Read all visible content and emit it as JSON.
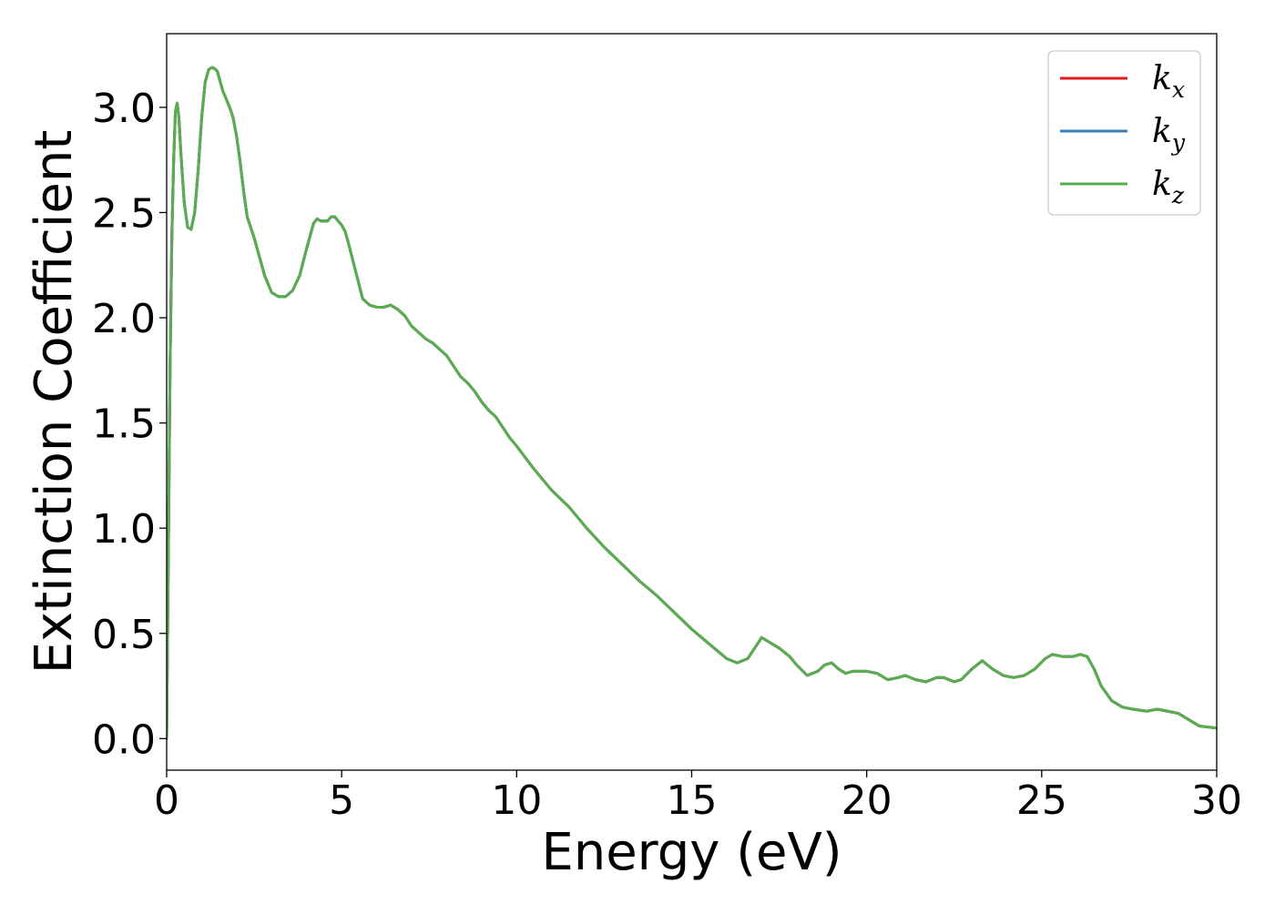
{
  "chart_data": {
    "type": "line",
    "xlabel": "Energy (eV)",
    "ylabel": "Extinction Coefficient",
    "xlim": [
      0,
      30
    ],
    "ylim": [
      -0.15,
      3.35
    ],
    "xticks": [
      0,
      5,
      10,
      15,
      20,
      25,
      30
    ],
    "xtick_labels": [
      "0",
      "5",
      "10",
      "15",
      "20",
      "25",
      "30"
    ],
    "yticks": [
      0.0,
      0.5,
      1.0,
      1.5,
      2.0,
      2.5,
      3.0
    ],
    "ytick_labels": [
      "0.0",
      "0.5",
      "1.0",
      "1.5",
      "2.0",
      "2.5",
      "3.0"
    ],
    "grid": false,
    "legend_position": "top-right",
    "x": [
      0.0,
      0.05,
      0.1,
      0.15,
      0.2,
      0.25,
      0.3,
      0.35,
      0.4,
      0.5,
      0.6,
      0.7,
      0.8,
      0.9,
      1.0,
      1.1,
      1.2,
      1.3,
      1.4,
      1.45,
      1.5,
      1.6,
      1.7,
      1.8,
      1.9,
      2.0,
      2.1,
      2.2,
      2.3,
      2.4,
      2.5,
      2.6,
      2.8,
      3.0,
      3.2,
      3.4,
      3.6,
      3.8,
      4.0,
      4.2,
      4.3,
      4.4,
      4.5,
      4.6,
      4.7,
      4.8,
      4.9,
      5.0,
      5.1,
      5.2,
      5.4,
      5.6,
      5.8,
      6.0,
      6.2,
      6.4,
      6.6,
      6.8,
      7.0,
      7.2,
      7.4,
      7.6,
      7.8,
      8.0,
      8.2,
      8.4,
      8.6,
      8.8,
      9.0,
      9.2,
      9.4,
      9.6,
      9.8,
      10.0,
      10.5,
      11.0,
      11.5,
      12.0,
      12.5,
      13.0,
      13.5,
      14.0,
      14.5,
      15.0,
      15.5,
      16.0,
      16.3,
      16.6,
      16.8,
      17.0,
      17.2,
      17.5,
      17.8,
      18.0,
      18.3,
      18.6,
      18.8,
      19.0,
      19.2,
      19.4,
      19.6,
      19.8,
      20.0,
      20.3,
      20.6,
      20.9,
      21.1,
      21.4,
      21.7,
      22.0,
      22.2,
      22.5,
      22.7,
      23.0,
      23.3,
      23.6,
      23.9,
      24.2,
      24.5,
      24.8,
      25.1,
      25.3,
      25.6,
      25.9,
      26.1,
      26.3,
      26.5,
      26.7,
      27.0,
      27.3,
      27.6,
      28.0,
      28.3,
      28.6,
      28.9,
      29.2,
      29.5,
      30.0
    ],
    "series": [
      {
        "name": "k_x",
        "label_base": "k",
        "label_sub": "x",
        "color": "#e41a1c",
        "values": [
          0.0,
          0.9,
          1.8,
          2.4,
          2.75,
          2.98,
          3.02,
          2.95,
          2.8,
          2.55,
          2.43,
          2.42,
          2.5,
          2.7,
          2.95,
          3.12,
          3.18,
          3.19,
          3.18,
          3.17,
          3.14,
          3.08,
          3.04,
          3.0,
          2.95,
          2.86,
          2.74,
          2.6,
          2.48,
          2.43,
          2.38,
          2.32,
          2.2,
          2.12,
          2.1,
          2.1,
          2.13,
          2.2,
          2.33,
          2.45,
          2.47,
          2.46,
          2.46,
          2.46,
          2.48,
          2.48,
          2.46,
          2.44,
          2.41,
          2.35,
          2.22,
          2.09,
          2.06,
          2.05,
          2.05,
          2.06,
          2.04,
          2.01,
          1.96,
          1.93,
          1.9,
          1.88,
          1.85,
          1.82,
          1.77,
          1.72,
          1.69,
          1.65,
          1.6,
          1.56,
          1.53,
          1.48,
          1.43,
          1.39,
          1.28,
          1.18,
          1.1,
          1.0,
          0.91,
          0.83,
          0.75,
          0.68,
          0.6,
          0.52,
          0.45,
          0.38,
          0.36,
          0.38,
          0.43,
          0.48,
          0.46,
          0.43,
          0.39,
          0.35,
          0.3,
          0.32,
          0.35,
          0.36,
          0.33,
          0.31,
          0.32,
          0.32,
          0.32,
          0.31,
          0.28,
          0.29,
          0.3,
          0.28,
          0.27,
          0.29,
          0.29,
          0.27,
          0.28,
          0.33,
          0.37,
          0.33,
          0.3,
          0.29,
          0.3,
          0.33,
          0.38,
          0.4,
          0.39,
          0.39,
          0.4,
          0.39,
          0.33,
          0.25,
          0.18,
          0.15,
          0.14,
          0.13,
          0.14,
          0.13,
          0.12,
          0.09,
          0.06,
          0.05
        ]
      },
      {
        "name": "k_y",
        "label_base": "k",
        "label_sub": "y",
        "color": "#377eb8",
        "values": [
          0.0,
          0.9,
          1.8,
          2.4,
          2.75,
          2.98,
          3.02,
          2.95,
          2.8,
          2.55,
          2.43,
          2.42,
          2.5,
          2.7,
          2.95,
          3.12,
          3.18,
          3.19,
          3.18,
          3.17,
          3.14,
          3.08,
          3.04,
          3.0,
          2.95,
          2.86,
          2.74,
          2.6,
          2.48,
          2.43,
          2.38,
          2.32,
          2.2,
          2.12,
          2.1,
          2.1,
          2.13,
          2.2,
          2.33,
          2.45,
          2.47,
          2.46,
          2.46,
          2.46,
          2.48,
          2.48,
          2.46,
          2.44,
          2.41,
          2.35,
          2.22,
          2.09,
          2.06,
          2.05,
          2.05,
          2.06,
          2.04,
          2.01,
          1.96,
          1.93,
          1.9,
          1.88,
          1.85,
          1.82,
          1.77,
          1.72,
          1.69,
          1.65,
          1.6,
          1.56,
          1.53,
          1.48,
          1.43,
          1.39,
          1.28,
          1.18,
          1.1,
          1.0,
          0.91,
          0.83,
          0.75,
          0.68,
          0.6,
          0.52,
          0.45,
          0.38,
          0.36,
          0.38,
          0.43,
          0.48,
          0.46,
          0.43,
          0.39,
          0.35,
          0.3,
          0.32,
          0.35,
          0.36,
          0.33,
          0.31,
          0.32,
          0.32,
          0.32,
          0.31,
          0.28,
          0.29,
          0.3,
          0.28,
          0.27,
          0.29,
          0.29,
          0.27,
          0.28,
          0.33,
          0.37,
          0.33,
          0.3,
          0.29,
          0.3,
          0.33,
          0.38,
          0.4,
          0.39,
          0.39,
          0.4,
          0.39,
          0.33,
          0.25,
          0.18,
          0.15,
          0.14,
          0.13,
          0.14,
          0.13,
          0.12,
          0.09,
          0.06,
          0.05
        ]
      },
      {
        "name": "k_z",
        "label_base": "k",
        "label_sub": "z",
        "color": "#5aad4e",
        "values": [
          0.0,
          0.9,
          1.8,
          2.4,
          2.75,
          2.98,
          3.02,
          2.95,
          2.8,
          2.55,
          2.43,
          2.42,
          2.5,
          2.7,
          2.95,
          3.12,
          3.18,
          3.19,
          3.18,
          3.17,
          3.14,
          3.08,
          3.04,
          3.0,
          2.95,
          2.86,
          2.74,
          2.6,
          2.48,
          2.43,
          2.38,
          2.32,
          2.2,
          2.12,
          2.1,
          2.1,
          2.13,
          2.2,
          2.33,
          2.45,
          2.47,
          2.46,
          2.46,
          2.46,
          2.48,
          2.48,
          2.46,
          2.44,
          2.41,
          2.35,
          2.22,
          2.09,
          2.06,
          2.05,
          2.05,
          2.06,
          2.04,
          2.01,
          1.96,
          1.93,
          1.9,
          1.88,
          1.85,
          1.82,
          1.77,
          1.72,
          1.69,
          1.65,
          1.6,
          1.56,
          1.53,
          1.48,
          1.43,
          1.39,
          1.28,
          1.18,
          1.1,
          1.0,
          0.91,
          0.83,
          0.75,
          0.68,
          0.6,
          0.52,
          0.45,
          0.38,
          0.36,
          0.38,
          0.43,
          0.48,
          0.46,
          0.43,
          0.39,
          0.35,
          0.3,
          0.32,
          0.35,
          0.36,
          0.33,
          0.31,
          0.32,
          0.32,
          0.32,
          0.31,
          0.28,
          0.29,
          0.3,
          0.28,
          0.27,
          0.29,
          0.29,
          0.27,
          0.28,
          0.33,
          0.37,
          0.33,
          0.3,
          0.29,
          0.3,
          0.33,
          0.38,
          0.4,
          0.39,
          0.39,
          0.4,
          0.39,
          0.33,
          0.25,
          0.18,
          0.15,
          0.14,
          0.13,
          0.14,
          0.13,
          0.12,
          0.09,
          0.06,
          0.05
        ]
      }
    ]
  }
}
